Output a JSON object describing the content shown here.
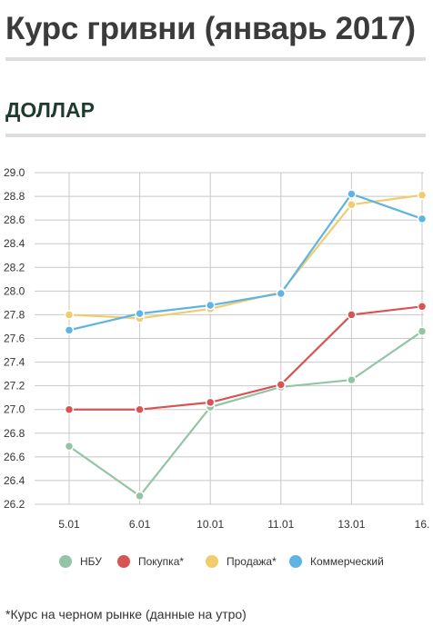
{
  "page": {
    "title": "Курс гривни (январь 2017)",
    "section_title": "ДОЛЛАР",
    "footnote": "*Курс на черном рынке (данные на утро)"
  },
  "chart_data": {
    "type": "line",
    "title": "",
    "xlabel": "",
    "ylabel": "",
    "categories": [
      "5.01",
      "6.01",
      "10.01",
      "11.01",
      "13.01",
      "16."
    ],
    "ylim": [
      26.2,
      29.0
    ],
    "yticks": [
      "26.2",
      "26.4",
      "26.6",
      "26.8",
      "27.0",
      "27.2",
      "27.4",
      "27.6",
      "27.8",
      "28.0",
      "28.2",
      "28.4",
      "28.6",
      "28.8",
      "29.0"
    ],
    "grid": true,
    "legend_position": "bottom",
    "series": [
      {
        "name": "НБУ",
        "color": "#94c4a8",
        "values": [
          26.69,
          26.27,
          27.02,
          27.19,
          27.25,
          27.66
        ]
      },
      {
        "name": "Покупка*",
        "color": "#d85353",
        "values": [
          27.0,
          27.0,
          27.06,
          27.21,
          27.8,
          27.87
        ]
      },
      {
        "name": "Продажа*",
        "color": "#f0cc6c",
        "values": [
          27.8,
          27.77,
          27.85,
          27.99,
          28.73,
          28.81
        ]
      },
      {
        "name": "Коммерческий",
        "color": "#5fb4e3",
        "values": [
          27.67,
          27.81,
          27.88,
          27.98,
          28.82,
          28.61
        ]
      }
    ]
  }
}
